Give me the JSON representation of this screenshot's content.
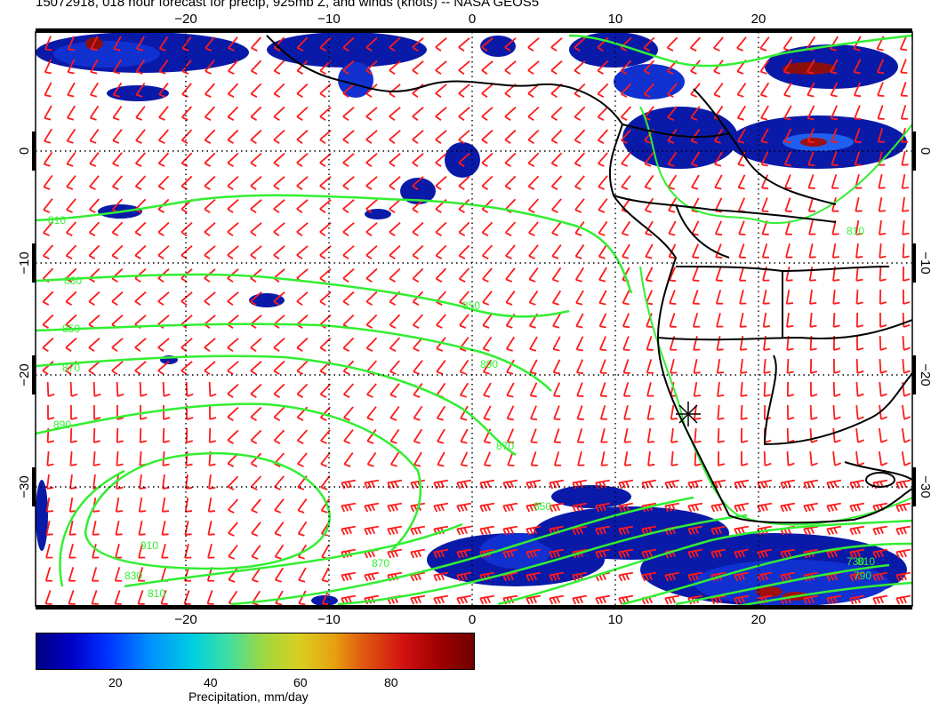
{
  "title": "15072918, 018 hour forecast for precip, 925mb Z, and winds (knots) -- NASA GEOS5",
  "map": {
    "lon_ticks": [
      {
        "value": "−20",
        "lon": -20
      },
      {
        "value": "−10",
        "lon": -10
      },
      {
        "value": "0",
        "lon": 0
      },
      {
        "value": "10",
        "lon": 10
      },
      {
        "value": "20",
        "lon": 20
      }
    ],
    "lat_ticks": [
      {
        "value": "0",
        "lat": 0
      },
      {
        "value": "−10",
        "lat": -10
      },
      {
        "value": "−20",
        "lat": -20
      },
      {
        "value": "−30",
        "lat": -30
      }
    ],
    "contour_labels": [
      "810",
      "830",
      "850",
      "870",
      "890",
      "910",
      "830",
      "810",
      "870",
      "850",
      "890",
      "870",
      "850",
      "810",
      "730",
      "790",
      "810"
    ],
    "colors": {
      "contour": "#33ee33",
      "wind": "#ff1a1a",
      "coast": "#000000",
      "precip_dark": "#000080",
      "precip_mid": "#0a2be0"
    }
  },
  "colorbar": {
    "title": "Precipitation, mm/day",
    "ticks": [
      "20",
      "40",
      "60",
      "80"
    ]
  }
}
